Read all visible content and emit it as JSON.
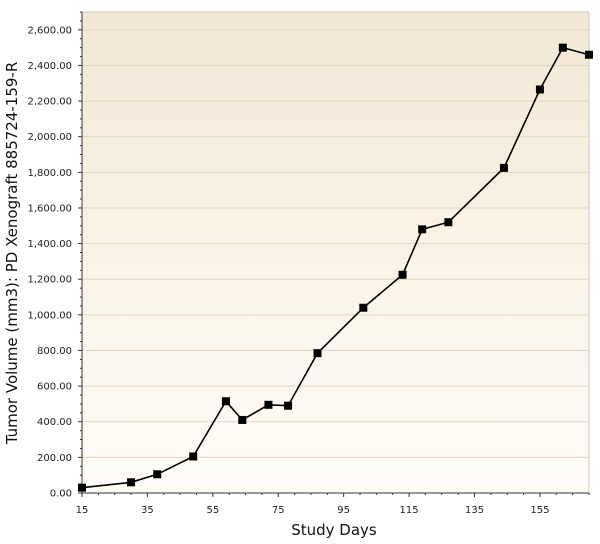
{
  "chart_data": {
    "type": "line",
    "title": "",
    "xlabel": "Study Days",
    "ylabel": "Tumor Volume (mm3): PD Xenograft 885724-159-R",
    "xlim": [
      15,
      170
    ],
    "ylim": [
      0,
      2700
    ],
    "x_ticks": [
      15,
      35,
      55,
      75,
      95,
      115,
      135,
      155
    ],
    "x_tick_labels": [
      "15",
      "35",
      "55",
      "75",
      "95",
      "115",
      "135",
      "155"
    ],
    "y_ticks": [
      0,
      200,
      400,
      600,
      800,
      1000,
      1200,
      1400,
      1600,
      1800,
      2000,
      2200,
      2400,
      2600
    ],
    "y_tick_labels": [
      "0.00",
      "200.00",
      "400.00",
      "600.00",
      "800.00",
      "1,000.00",
      "1,200.00",
      "1,400.00",
      "1,600.00",
      "1,800.00",
      "2,000.00",
      "2,200.00",
      "2,400.00",
      "2,600.00"
    ],
    "grid": true,
    "legend": "none",
    "colors": {
      "line": "#000000",
      "marker": "#000000",
      "plot_bg_top": "#f3e8d5",
      "plot_bg_bottom": "#fffdf8",
      "grid": "#e3d6c0"
    },
    "series": [
      {
        "x": [
          15,
          30,
          38,
          49,
          59,
          64,
          72,
          78,
          87,
          101,
          113,
          119,
          127,
          144,
          155,
          162,
          170
        ],
        "y": [
          30,
          60,
          105,
          205,
          515,
          410,
          495,
          490,
          785,
          1040,
          1225,
          1480,
          1520,
          1825,
          2265,
          2500,
          2460
        ]
      }
    ]
  }
}
